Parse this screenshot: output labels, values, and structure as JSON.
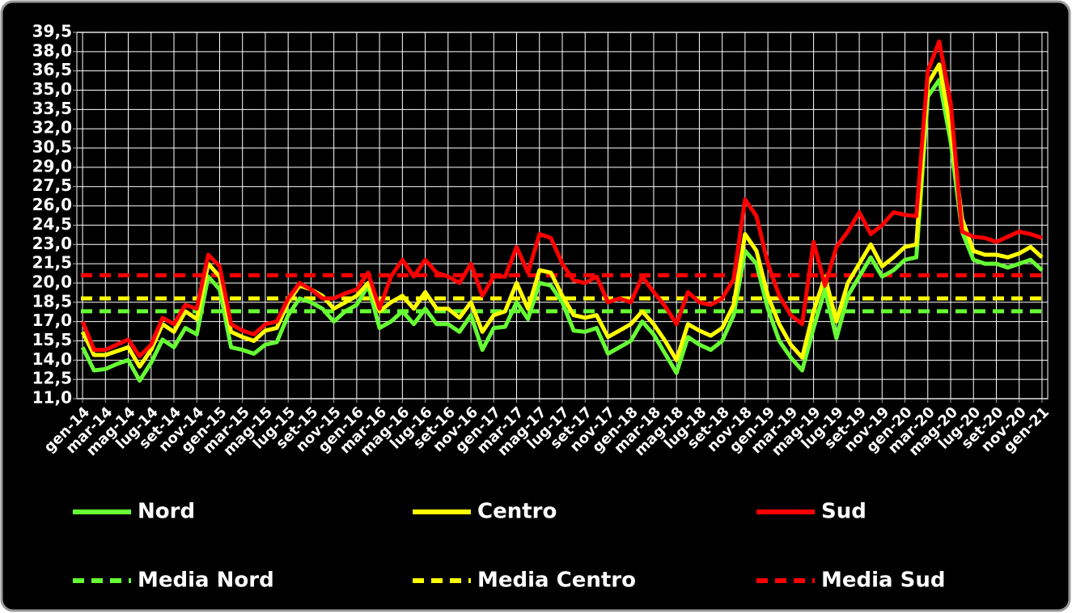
{
  "chart_data": {
    "type": "line",
    "categories": [
      "gen-14",
      null,
      "mar-14",
      null,
      "mag-14",
      null,
      "lug-14",
      null,
      "set-14",
      null,
      "nov-14",
      null,
      "gen-15",
      null,
      "mar-15",
      null,
      "mag-15",
      null,
      "lug-15",
      null,
      "set-15",
      null,
      "nov-15",
      null,
      "gen-16",
      null,
      "mar-16",
      null,
      "mag-16",
      null,
      "lug-16",
      null,
      "set-16",
      null,
      "nov-16",
      null,
      "gen-17",
      null,
      "mar-17",
      null,
      "mag-17",
      null,
      "lug-17",
      null,
      "set-17",
      null,
      "nov-17",
      null,
      "gen-18",
      null,
      "mar-18",
      null,
      "mag-18",
      null,
      "lug-18",
      null,
      "set-18",
      null,
      "nov-18",
      null,
      "gen-19",
      null,
      "mar-19",
      null,
      "mag-19",
      null,
      "lug-19",
      null,
      "set-19",
      null,
      "nov-19",
      null,
      "gen-20",
      null,
      "mar-20",
      null,
      "mag-20",
      null,
      "lug-20",
      null,
      "set-20",
      null,
      "nov-20",
      null,
      "gen-21"
    ],
    "series": [
      {
        "name": "Nord",
        "color": "#66ff33",
        "values": [
          15.0,
          13.2,
          13.3,
          13.7,
          14.0,
          12.4,
          13.8,
          15.6,
          15.0,
          16.5,
          16.0,
          20.5,
          19.5,
          15.0,
          14.8,
          14.5,
          15.2,
          15.4,
          17.5,
          18.8,
          18.5,
          18.0,
          17.0,
          17.8,
          18.3,
          19.8,
          16.5,
          17.0,
          17.8,
          16.8,
          18.0,
          16.8,
          16.8,
          16.2,
          17.5,
          14.8,
          16.5,
          16.6,
          18.5,
          17.2,
          20.0,
          19.8,
          18.5,
          16.3,
          16.2,
          16.5,
          14.5,
          15.0,
          15.5,
          17.0,
          16.0,
          14.5,
          13.0,
          15.8,
          15.2,
          14.8,
          15.5,
          17.5,
          22.5,
          21.5,
          18.0,
          15.5,
          14.2,
          13.2,
          16.5,
          19.5,
          15.7,
          19.0,
          20.5,
          22.0,
          20.5,
          21.0,
          21.8,
          22.0,
          34.5,
          35.8,
          31.0,
          24.0,
          21.8,
          21.5,
          21.5,
          21.2,
          21.5,
          21.8,
          21.0
        ]
      },
      {
        "name": "Centro",
        "color": "#ffff00",
        "values": [
          16.2,
          14.4,
          14.4,
          14.7,
          15.0,
          13.5,
          14.8,
          16.8,
          16.2,
          17.8,
          17.2,
          21.5,
          20.5,
          16.2,
          15.8,
          15.5,
          16.3,
          16.5,
          18.5,
          19.8,
          19.5,
          19.0,
          18.0,
          18.5,
          19.0,
          20.0,
          17.8,
          18.5,
          19.0,
          18.0,
          19.3,
          18.0,
          18.0,
          17.3,
          18.5,
          16.2,
          17.5,
          17.8,
          20.0,
          18.0,
          21.0,
          20.8,
          19.0,
          17.5,
          17.3,
          17.5,
          15.8,
          16.3,
          16.8,
          17.8,
          16.8,
          15.5,
          14.0,
          16.8,
          16.3,
          15.9,
          16.5,
          18.3,
          23.8,
          22.5,
          19.0,
          16.8,
          15.2,
          14.2,
          17.8,
          20.5,
          17.0,
          20.0,
          21.5,
          23.0,
          21.3,
          22.0,
          22.8,
          23.0,
          35.5,
          37.0,
          32.0,
          25.0,
          22.5,
          22.2,
          22.2,
          22.0,
          22.3,
          22.8,
          22.0
        ]
      },
      {
        "name": "Sud",
        "color": "#ff0000",
        "values": [
          17.0,
          14.8,
          14.8,
          15.2,
          15.6,
          14.3,
          15.2,
          17.3,
          16.8,
          18.3,
          18.0,
          22.2,
          21.3,
          16.8,
          16.3,
          16.0,
          16.8,
          17.0,
          18.8,
          20.0,
          19.5,
          18.8,
          18.8,
          19.2,
          19.5,
          20.8,
          18.0,
          20.5,
          21.8,
          20.5,
          21.8,
          20.8,
          20.5,
          20.0,
          21.5,
          19.0,
          20.5,
          20.5,
          22.8,
          20.8,
          23.8,
          23.5,
          21.5,
          20.2,
          20.0,
          20.5,
          18.5,
          18.8,
          18.5,
          20.5,
          19.3,
          18.2,
          16.8,
          19.3,
          18.5,
          18.3,
          18.8,
          20.3,
          26.5,
          25.2,
          21.5,
          19.0,
          17.5,
          16.8,
          23.2,
          19.8,
          22.8,
          24.0,
          25.5,
          23.8,
          24.5,
          25.5,
          25.3,
          25.2,
          36.5,
          38.8,
          34.0,
          24.0,
          23.6,
          23.5,
          23.2,
          23.6,
          24.0,
          23.8,
          23.5
        ]
      }
    ],
    "mean_lines": [
      {
        "name": "Media Nord",
        "color": "#66ff33",
        "value": 17.8
      },
      {
        "name": "Media Centro",
        "color": "#ffff00",
        "value": 18.8
      },
      {
        "name": "Media Sud",
        "color": "#ff0000",
        "value": 20.6
      }
    ],
    "ylim": [
      11,
      39.5
    ],
    "yticks": [
      {
        "value": 11,
        "label": "11,0"
      },
      {
        "value": 12.5,
        "label": "12,5"
      },
      {
        "value": 14,
        "label": "14,0"
      },
      {
        "value": 15.5,
        "label": "15,5"
      },
      {
        "value": 17,
        "label": "17,0"
      },
      {
        "value": 18.5,
        "label": "18,5"
      },
      {
        "value": 20,
        "label": "20,0"
      },
      {
        "value": 21.5,
        "label": "21,5"
      },
      {
        "value": 23,
        "label": "23,0"
      },
      {
        "value": 24.5,
        "label": "24,5"
      },
      {
        "value": 26,
        "label": "26,0"
      },
      {
        "value": 27.5,
        "label": "27,5"
      },
      {
        "value": 29,
        "label": "29,0"
      },
      {
        "value": 30.5,
        "label": "30,5"
      },
      {
        "value": 32,
        "label": "32,0"
      },
      {
        "value": 33.5,
        "label": "33,5"
      },
      {
        "value": 35,
        "label": "35,0"
      },
      {
        "value": 36.5,
        "label": "36,5"
      },
      {
        "value": 38,
        "label": "38,0"
      },
      {
        "value": 39.5,
        "label": "39,5"
      }
    ],
    "grid": true,
    "legend": "bottom"
  }
}
